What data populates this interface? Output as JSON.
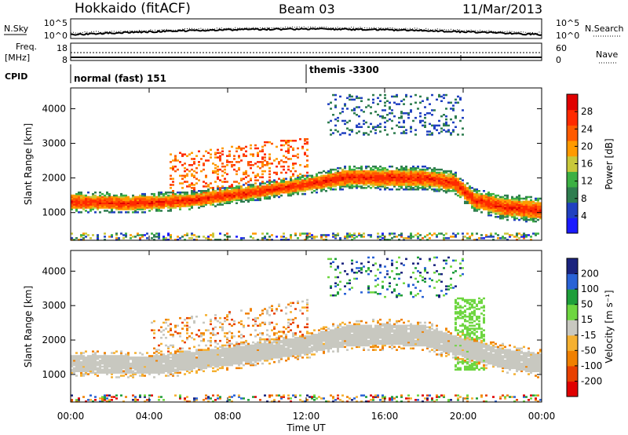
{
  "header": {
    "station": "Hokkaido (fitACF)",
    "beam": "Beam 03",
    "date": "11/Mar/2013"
  },
  "summary": {
    "nsky_label": "N.Sky",
    "nsearch_label": "N.Search",
    "noise_ticks": [
      "10^5",
      "10^0"
    ],
    "freq_label_line1": "Freq.",
    "freq_label_line2": "[MHz]",
    "freq_ticks": [
      "18",
      "8"
    ],
    "nave_label": "Nave",
    "nave_ticks": [
      "60",
      "0"
    ],
    "cpid_label": "CPID",
    "cpid_segments": [
      {
        "label": "normal (fast) 151",
        "start_hour": 0
      },
      {
        "label": "themis -3300",
        "start_hour": 12
      }
    ]
  },
  "axes": {
    "ylabel": "Slant Range [km]",
    "xlabel": "Time UT",
    "yticks": [
      "1000",
      "2000",
      "3000",
      "4000"
    ],
    "xticks": [
      "00:00",
      "04:00",
      "08:00",
      "12:00",
      "16:00",
      "20:00",
      "00:00"
    ]
  },
  "colors": {
    "power": [
      "#1a1aff",
      "#2040c0",
      "#2e7d4f",
      "#3cb043",
      "#c8c83a",
      "#ff9a00",
      "#ff5a00",
      "#ff2a00",
      "#e00000"
    ],
    "velocity_positive": [
      "#1a237e",
      "#2962d6",
      "#1e9e3a",
      "#6ed640"
    ],
    "velocity_ground": "#c8c8c0",
    "velocity_negative": [
      "#f5b030",
      "#f08000",
      "#e84000",
      "#e00000"
    ]
  },
  "power_colorbar": {
    "label": "Power [dB]",
    "ticks": [
      "4",
      "8",
      "12",
      "16",
      "20",
      "24",
      "28"
    ]
  },
  "velocity_colorbar": {
    "label": "Velocity [m s⁻¹]",
    "ticks": [
      "200",
      "100",
      "50",
      "15",
      "-15",
      "-50",
      "-100",
      "-200"
    ]
  },
  "chart_data": [
    {
      "type": "heatmap",
      "name": "power",
      "xlabel": "Time UT",
      "ylabel": "Slant Range [km]",
      "xlim_hours": [
        0,
        24
      ],
      "ylim_km": [
        200,
        4600
      ],
      "colorbar": "Power [dB]",
      "colorbar_range": [
        0,
        32
      ],
      "main_echo_band_km": [
        {
          "hour": 0,
          "center": 1300,
          "width": 380
        },
        {
          "hour": 3,
          "center": 1250,
          "width": 360
        },
        {
          "hour": 6,
          "center": 1330,
          "width": 340
        },
        {
          "hour": 9,
          "center": 1550,
          "width": 320
        },
        {
          "hour": 12,
          "center": 1800,
          "width": 340
        },
        {
          "hour": 14,
          "center": 2000,
          "width": 420
        },
        {
          "hour": 16,
          "center": 2000,
          "width": 440
        },
        {
          "hour": 18,
          "center": 1980,
          "width": 420
        },
        {
          "hour": 19.5,
          "center": 1850,
          "width": 400
        },
        {
          "hour": 20.5,
          "center": 1350,
          "width": 420
        },
        {
          "hour": 22,
          "center": 1150,
          "width": 460
        },
        {
          "hour": 24,
          "center": 1050,
          "width": 460
        }
      ]
    },
    {
      "type": "heatmap",
      "name": "velocity",
      "xlabel": "Time UT",
      "ylabel": "Slant Range [km]",
      "xlim_hours": [
        0,
        24
      ],
      "ylim_km": [
        200,
        4600
      ],
      "colorbar": "Velocity [m s⁻¹]",
      "colorbar_range": [
        -200,
        200
      ],
      "ground_scatter_band_km": [
        {
          "hour": 0,
          "center": 1300,
          "width": 500
        },
        {
          "hour": 4,
          "center": 1250,
          "width": 520
        },
        {
          "hour": 8,
          "center": 1500,
          "width": 520
        },
        {
          "hour": 12,
          "center": 1850,
          "width": 520
        },
        {
          "hour": 14,
          "center": 2100,
          "width": 600
        },
        {
          "hour": 16,
          "center": 2150,
          "width": 600
        },
        {
          "hour": 18,
          "center": 2100,
          "width": 600
        },
        {
          "hour": 20,
          "center": 1750,
          "width": 560
        },
        {
          "hour": 22,
          "center": 1450,
          "width": 560
        },
        {
          "hour": 24,
          "center": 1300,
          "width": 560
        }
      ]
    }
  ]
}
